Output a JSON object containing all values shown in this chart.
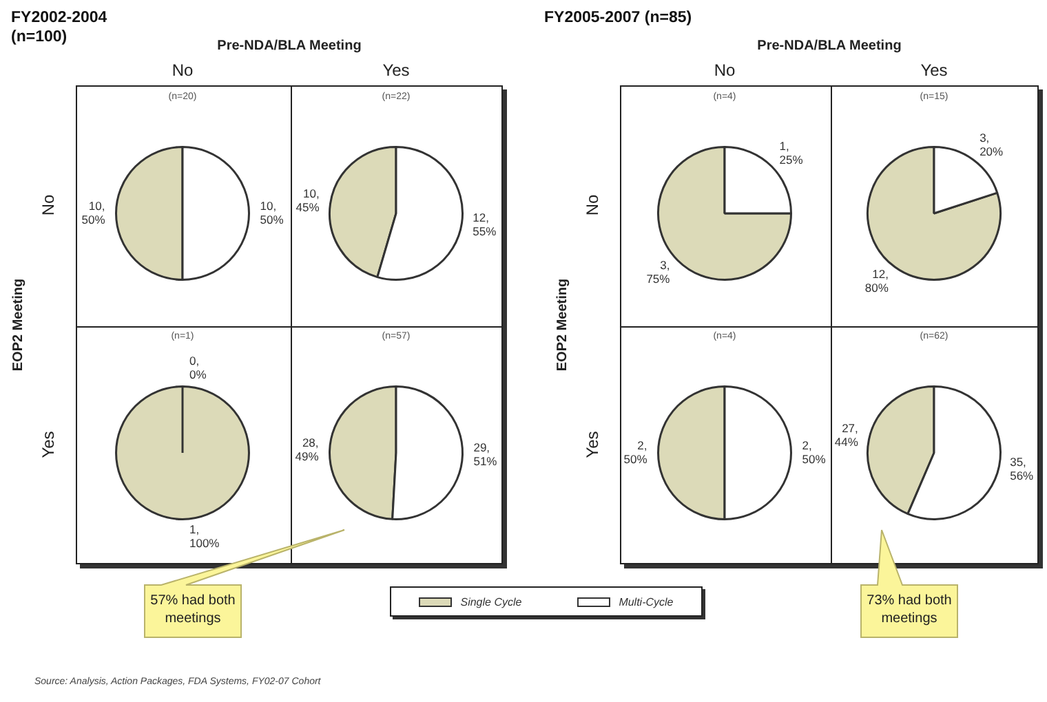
{
  "chart_data": [
    {
      "type": "other",
      "title": "FY2002-2004 (n=100)",
      "xlabel": "Pre-NDA/BLA Meeting",
      "ylabel": "EOP2 Meeting",
      "annotations": [
        "No",
        "Yes",
        "No",
        "Yes",
        "57% had both meetings"
      ]
    },
    {
      "type": "pie",
      "title": "(n=20)",
      "categories": [
        null,
        null
      ],
      "values": [
        10,
        10
      ],
      "colors": [
        "#dcdab8",
        "#ffffff"
      ],
      "value_labels": [
        "10, 50%",
        "10, 50%"
      ]
    },
    {
      "type": "pie",
      "title": "(n=22)",
      "categories": [
        null,
        null
      ],
      "values": [
        10,
        12
      ],
      "colors": [
        "#dcdab8",
        "#ffffff"
      ],
      "value_labels": [
        "10, 45%",
        "12, 55%"
      ]
    },
    {
      "type": "pie",
      "title": "(n=1)",
      "categories": [
        null,
        null
      ],
      "values": [
        1,
        0
      ],
      "colors": [
        "#dcdab8",
        "#ffffff"
      ],
      "value_labels": [
        "1, 100%",
        "0, 0%"
      ]
    },
    {
      "type": "pie",
      "title": "(n=57)",
      "categories": [
        null,
        null
      ],
      "values": [
        28,
        29
      ],
      "colors": [
        "#dcdab8",
        "#ffffff"
      ],
      "value_labels": [
        "28, 49%",
        "29, 51%"
      ]
    },
    {
      "type": "other",
      "title": "FY2005-2007 (n=85)",
      "xlabel": "Pre-NDA/BLA Meeting",
      "ylabel": "EOP2 Meeting",
      "annotations": [
        "No",
        "Yes",
        "No",
        "Yes",
        "73% had both meetings"
      ]
    },
    {
      "type": "pie",
      "title": "(n=4)",
      "categories": [
        null,
        null
      ],
      "values": [
        3,
        1
      ],
      "colors": [
        "#dcdab8",
        "#ffffff"
      ],
      "value_labels": [
        "3, 75%",
        "1, 25%"
      ]
    },
    {
      "type": "pie",
      "title": "(n=15)",
      "categories": [
        null,
        null
      ],
      "values": [
        12,
        3
      ],
      "colors": [
        "#dcdab8",
        "#ffffff"
      ],
      "value_labels": [
        "12, 80%",
        "3, 20%"
      ]
    },
    {
      "type": "pie",
      "title": "(n=4)",
      "categories": [
        null,
        null
      ],
      "values": [
        2,
        2
      ],
      "colors": [
        "#dcdab8",
        "#ffffff"
      ],
      "value_labels": [
        "2, 50%",
        "2, 50%"
      ]
    },
    {
      "type": "pie",
      "title": "(n=62)",
      "categories": [
        null,
        null
      ],
      "values": [
        27,
        35
      ],
      "colors": [
        "#dcdab8",
        "#ffffff"
      ],
      "value_labels": [
        "27, 44%",
        "35, 56%"
      ]
    },
    {
      "type": "other",
      "categories": [
        "Single Cycle",
        "Multi-Cycle"
      ],
      "colors": [
        "#dcdab8",
        "#ffffff"
      ],
      "annotations": [
        "Source: Analysis, Action Packages, FDA Systems, FY02-07 Cohort"
      ]
    }
  ]
}
